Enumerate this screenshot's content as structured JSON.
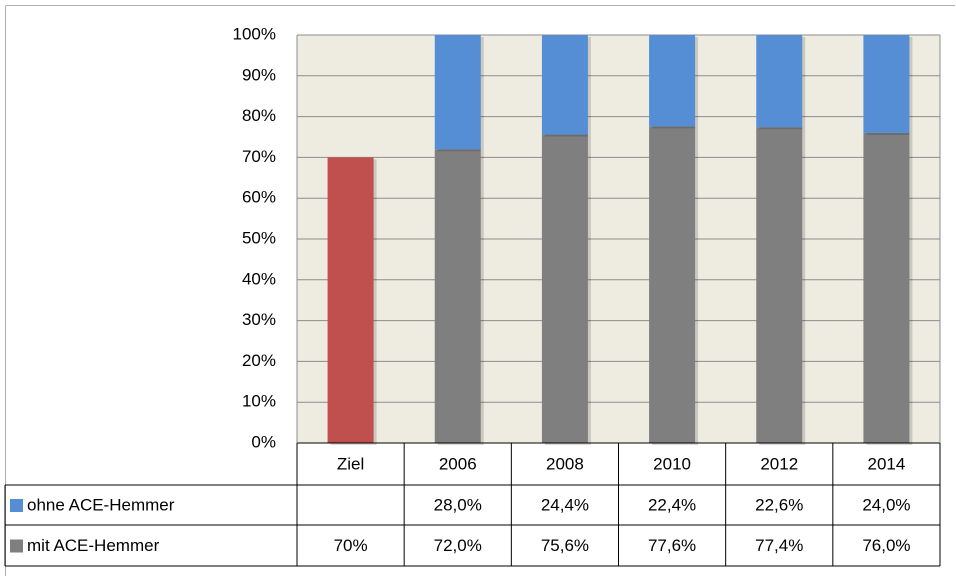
{
  "chart_data": {
    "type": "bar",
    "stacked": true,
    "categories": [
      "Ziel",
      "2006",
      "2008",
      "2010",
      "2012",
      "2014"
    ],
    "series": [
      {
        "name": "ohne ACE-Hemmer",
        "color": "#558ed5",
        "values": [
          null,
          28.0,
          24.4,
          22.4,
          22.6,
          24.0
        ],
        "value_labels": [
          null,
          "28,0%",
          "24,4%",
          "22,4%",
          "22,6%",
          "24,0%"
        ]
      },
      {
        "name": "mit ACE-Hemmer",
        "color": "#7f7f7f",
        "point_colors": [
          "#c0504d",
          "#7f7f7f",
          "#7f7f7f",
          "#7f7f7f",
          "#7f7f7f",
          "#7f7f7f"
        ],
        "values": [
          70,
          72.0,
          75.6,
          77.6,
          77.4,
          76.0
        ],
        "value_labels": [
          "70%",
          "72,0%",
          "75,6%",
          "77,6%",
          "77,4%",
          "76,0%"
        ]
      }
    ],
    "ylim": [
      0,
      100
    ],
    "yticks": [
      {
        "value": 0,
        "label": "0%"
      },
      {
        "value": 10,
        "label": "10%"
      },
      {
        "value": 20,
        "label": "20%"
      },
      {
        "value": 30,
        "label": "30%"
      },
      {
        "value": 40,
        "label": "40%"
      },
      {
        "value": 50,
        "label": "50%"
      },
      {
        "value": 60,
        "label": "60%"
      },
      {
        "value": 70,
        "label": "70%"
      },
      {
        "value": 80,
        "label": "80%"
      },
      {
        "value": 90,
        "label": "90%"
      },
      {
        "value": 100,
        "label": "100%"
      }
    ],
    "grid": true,
    "data_table": true
  }
}
